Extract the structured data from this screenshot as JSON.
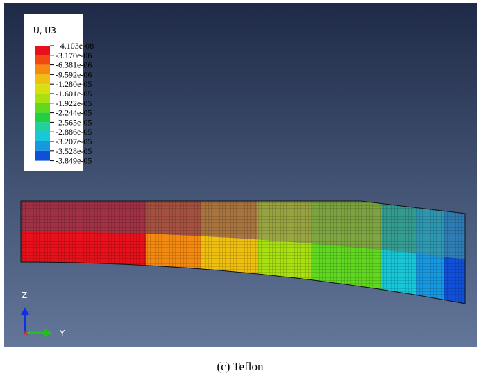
{
  "legend": {
    "title": "U, U3",
    "labels": [
      "+4.103e-08",
      "-3.170e-06",
      "-6.381e-06",
      "-9.592e-06",
      "-1.280e-05",
      "-1.601e-05",
      "-1.922e-05",
      "-2.244e-05",
      "-2.565e-05",
      "-2.886e-05",
      "-3.207e-05",
      "-3.528e-05",
      "-3.849e-05"
    ],
    "colors": [
      "#e8101a",
      "#f04a10",
      "#f58a10",
      "#f0c010",
      "#d8e010",
      "#a8e010",
      "#60d820",
      "#20d040",
      "#20d0a0",
      "#18c8d8",
      "#1898e0",
      "#1050d8",
      "#0818c8"
    ]
  },
  "triad": {
    "z": "Z",
    "y": "Y"
  },
  "caption": "(c)  Teflon"
}
